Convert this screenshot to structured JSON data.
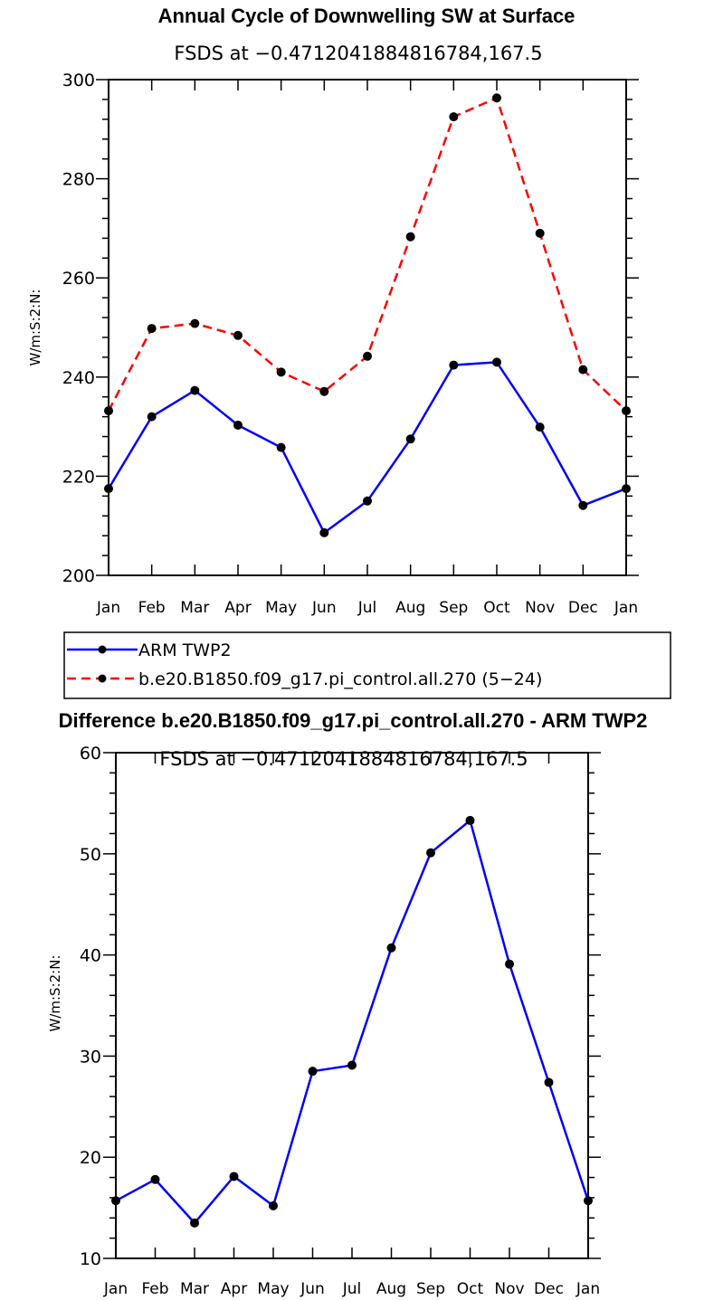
{
  "chart_data": [
    {
      "type": "line",
      "title": "Annual Cycle of Downwelling SW at Surface",
      "subtitle": "FSDS at −0.4712041884816784,167.5",
      "xlabel": "",
      "ylabel": "W/m:S:2:N:",
      "categories": [
        "Jan",
        "Feb",
        "Mar",
        "Apr",
        "May",
        "Jun",
        "Jul",
        "Aug",
        "Sep",
        "Oct",
        "Nov",
        "Dec",
        "Jan"
      ],
      "ylim": [
        200,
        300
      ],
      "yticks": [
        "200",
        "220",
        "240",
        "260",
        "280",
        "300"
      ],
      "series": [
        {
          "name": "ARM TWP2",
          "color": "#0000ff",
          "dash": "solid",
          "values": [
            217.5,
            232.0,
            237.3,
            230.3,
            225.8,
            208.6,
            215.0,
            227.5,
            242.4,
            243.0,
            229.9,
            214.1,
            217.5
          ]
        },
        {
          "name": "b.e20.B1850.f09_g17.pi_control.all.270 (5−24)",
          "color": "#ff0000",
          "dash": "dashed",
          "values": [
            233.2,
            249.8,
            250.8,
            248.4,
            241.0,
            237.1,
            244.2,
            268.3,
            292.5,
            296.3,
            269.0,
            241.5,
            233.2
          ]
        }
      ]
    },
    {
      "type": "line",
      "title": "Difference b.e20.B1850.f09_g17.pi_control.all.270 - ARM TWP2",
      "subtitle": "FSDS at −0.4712041884816784,167.5",
      "xlabel": "",
      "ylabel": "W/m:S:2:N:",
      "categories": [
        "Jan",
        "Feb",
        "Mar",
        "Apr",
        "May",
        "Jun",
        "Jul",
        "Aug",
        "Sep",
        "Oct",
        "Nov",
        "Dec",
        "Jan"
      ],
      "ylim": [
        10,
        60
      ],
      "yticks": [
        "10",
        "20",
        "30",
        "40",
        "50",
        "60"
      ],
      "series": [
        {
          "name": "Difference",
          "color": "#0000ff",
          "dash": "solid",
          "values": [
            15.7,
            17.8,
            13.5,
            18.1,
            15.2,
            28.5,
            29.1,
            40.7,
            50.1,
            53.3,
            39.1,
            27.4,
            15.7
          ]
        }
      ]
    }
  ]
}
